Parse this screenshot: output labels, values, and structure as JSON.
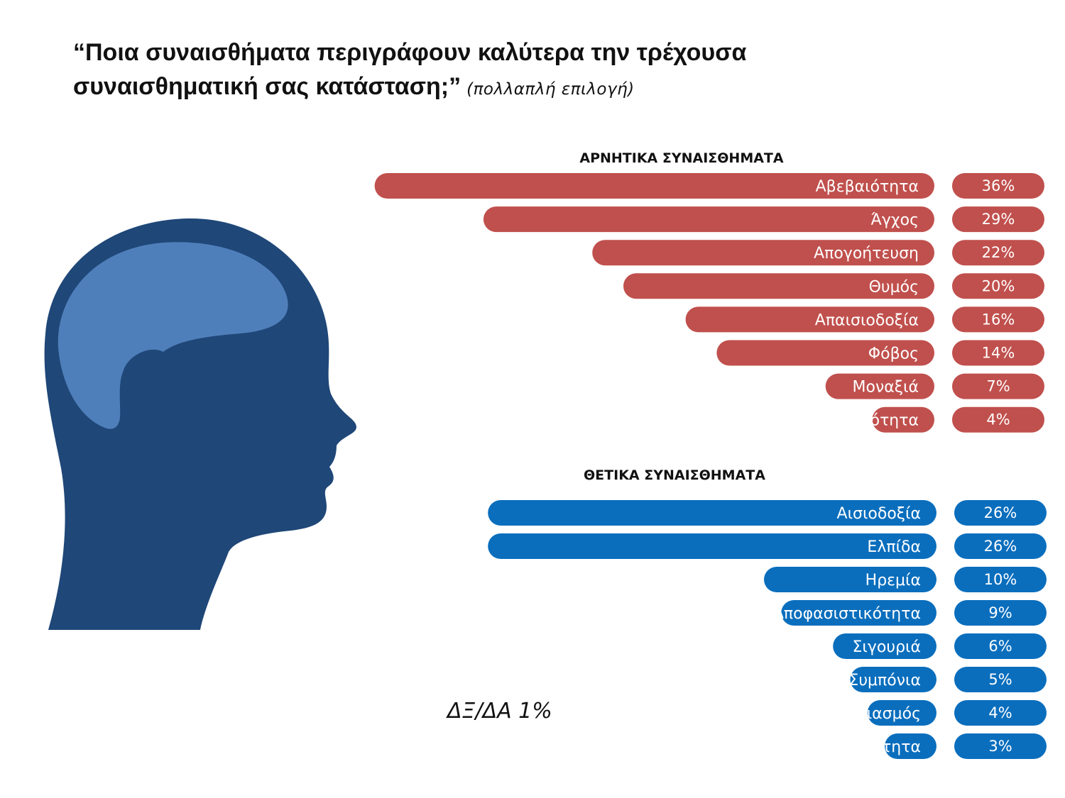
{
  "title": {
    "main": "“Ποια συναισθήματα περιγράφουν καλύτερα την τρέχουσα συναισθηματική σας κατάσταση;”",
    "subtitle": "(πολλαπλή επιλογή)"
  },
  "footnote": "ΔΞ/ΔΑ 1%",
  "colors": {
    "negative": "#c0504d",
    "positive": "#0a6ebd",
    "head_dark": "#1f4778",
    "head_light": "#4f7fbb"
  },
  "chart_data": [
    {
      "type": "bar",
      "orientation": "horizontal",
      "title": "ΑΡΝΗΤΙΚΑ ΣΥΝΑΙΣΘΗΜΑΤΑ",
      "categories": [
        "Αβεβαιότητα",
        "Άγχος",
        "Απογοήτευση",
        "Θυμός",
        "Απαισιοδοξία",
        "Φόβος",
        "Μοναξιά",
        "Ανικανότητα"
      ],
      "values": [
        36,
        29,
        22,
        20,
        16,
        14,
        7,
        4
      ],
      "value_labels": [
        "36%",
        "29%",
        "22%",
        "20%",
        "16%",
        "14%",
        "7%",
        "4%"
      ],
      "unit": "%",
      "color": "#c0504d"
    },
    {
      "type": "bar",
      "orientation": "horizontal",
      "title": "ΘΕΤΙΚΑ ΣΥΝΑΙΣΘΗΜΑΤΑ",
      "categories": [
        "Αισιοδοξία",
        "Ελπίδα",
        "Ηρεμία",
        "Αποφασιστικότητα",
        "Σιγουριά",
        "Συμπόνια",
        "Ενθουσιασμός",
        "Χρησιμότητα"
      ],
      "values": [
        26,
        26,
        10,
        9,
        6,
        5,
        4,
        3
      ],
      "value_labels": [
        "26%",
        "26%",
        "10%",
        "9%",
        "6%",
        "5%",
        "4%",
        "3%"
      ],
      "unit": "%",
      "color": "#0a6ebd"
    }
  ]
}
